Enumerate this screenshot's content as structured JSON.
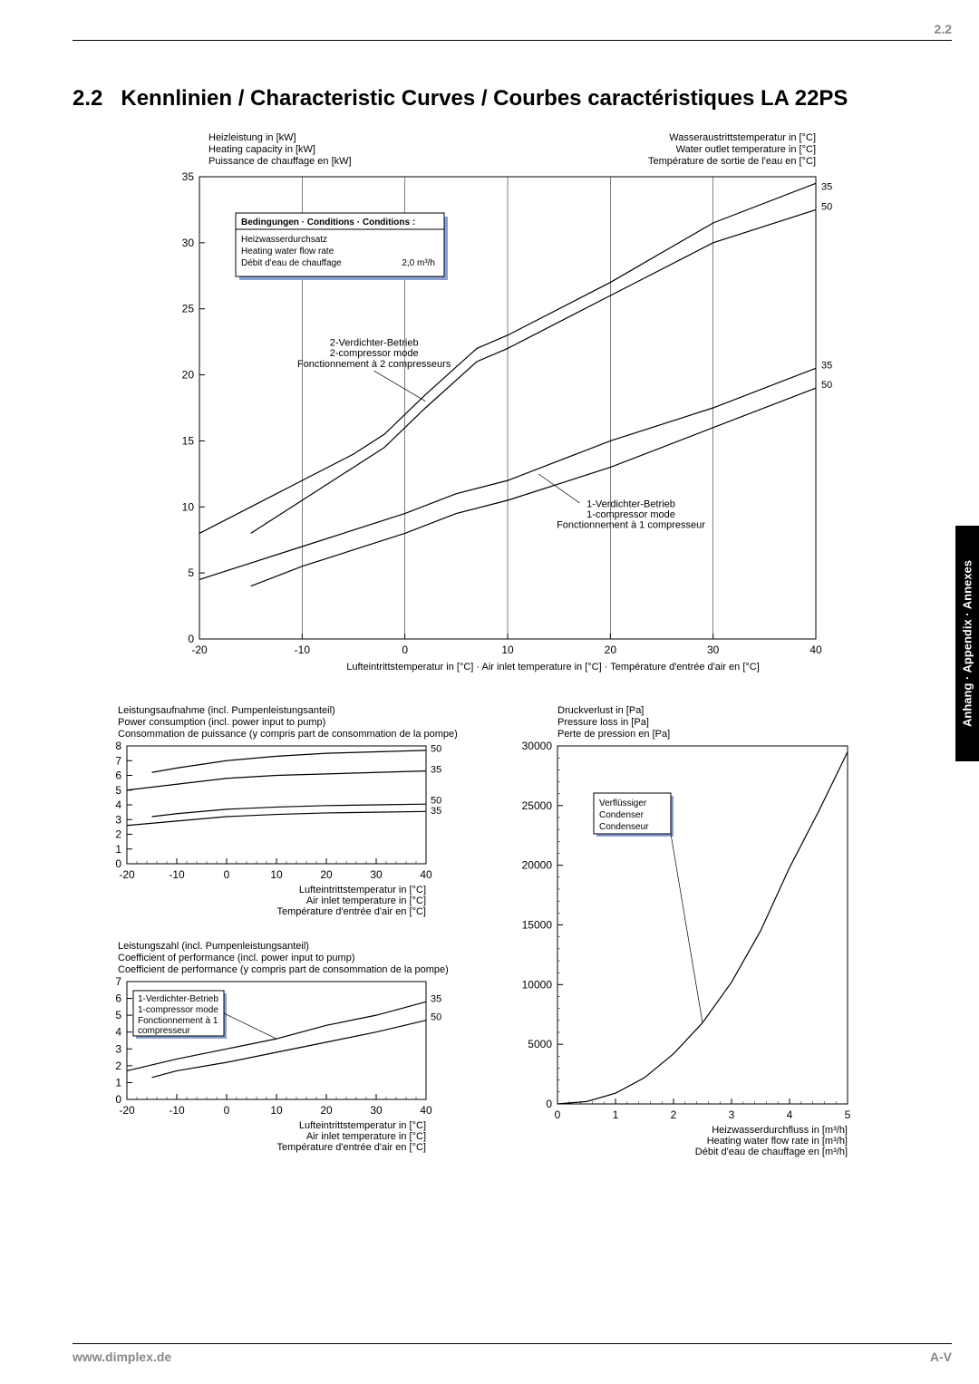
{
  "page": {
    "header_number": "2.2",
    "section_number": "2.2",
    "section_title": "Kennlinien / Characteristic Curves / Courbes caractéristiques LA 22PS",
    "footer_url": "www.dimplex.de",
    "footer_page": "A-V",
    "side_tab": "Anhang · Appendix · Annexes"
  },
  "main_chart": {
    "type": "line",
    "title_left_1": "Heizleistung in [kW]",
    "title_left_2": "Heating capacity in [kW]",
    "title_left_3": "Puissance de chauffage en [kW]",
    "title_right_1": "Wasseraustrittstemperatur in [°C]",
    "title_right_2": "Water outlet temperature in [°C]",
    "title_right_3": "Température de sortie de l'eau en [°C]",
    "xlabel": "Lufteintrittstemperatur in [°C] · Air inlet temperature in [°C] · Température d'entrée d'air en [°C]",
    "xlim": [
      -20,
      40
    ],
    "xtick_step": 10,
    "ylim": [
      0,
      35
    ],
    "ytick_step": 5,
    "conditions_box": {
      "title": "Bedingungen · Conditions · Conditions :",
      "l1": "Heizwasserdurchsatz",
      "l2": "Heating water flow rate",
      "l3": "Débit d'eau de chauffage",
      "value": "2,0 m³/h"
    },
    "annot_2comp_1": "2-Verdichter-Betrieb",
    "annot_2comp_2": "2-compressor mode",
    "annot_2comp_3": "Fonctionnement à 2 compresseurs",
    "annot_1comp_1": "1-Verdichter-Betrieb",
    "annot_1comp_2": "1-compressor mode",
    "annot_1comp_3": "Fonctionnement à 1 compresseur",
    "top_pair_labels": [
      "35",
      "50"
    ],
    "bot_pair_labels": [
      "35",
      "50"
    ],
    "series_2c_35": [
      [
        -20,
        8
      ],
      [
        -15,
        10
      ],
      [
        -10,
        12
      ],
      [
        -5,
        14
      ],
      [
        -2,
        15.5
      ],
      [
        2,
        18.5
      ],
      [
        7,
        22
      ],
      [
        10,
        23
      ],
      [
        20,
        27
      ],
      [
        30,
        31.5
      ],
      [
        40,
        34.5
      ]
    ],
    "series_2c_50": [
      [
        -15,
        8
      ],
      [
        -10,
        10.5
      ],
      [
        -5,
        13
      ],
      [
        -2,
        14.5
      ],
      [
        2,
        17.5
      ],
      [
        7,
        21
      ],
      [
        10,
        22
      ],
      [
        20,
        26
      ],
      [
        30,
        30
      ],
      [
        40,
        32.5
      ]
    ],
    "series_1c_35": [
      [
        -20,
        4.5
      ],
      [
        -10,
        7
      ],
      [
        0,
        9.5
      ],
      [
        5,
        11
      ],
      [
        10,
        12
      ],
      [
        20,
        15
      ],
      [
        30,
        17.5
      ],
      [
        40,
        20.5
      ]
    ],
    "series_1c_50": [
      [
        -15,
        4
      ],
      [
        -10,
        5.5
      ],
      [
        0,
        8
      ],
      [
        5,
        9.5
      ],
      [
        10,
        10.5
      ],
      [
        20,
        13
      ],
      [
        30,
        16
      ],
      [
        40,
        19
      ]
    ]
  },
  "power_chart": {
    "type": "line",
    "title_1": "Leistungsaufnahme (incl. Pumpenleistungsanteil)",
    "title_2": "Power consumption (incl. power input to pump)",
    "title_3": "Consommation de puissance (y compris part de consommation de la pompe)",
    "xlabel_1": "Lufteintrittstemperatur in [°C]",
    "xlabel_2": "Air inlet temperature in [°C]",
    "xlabel_3": "Température d'entrée d'air en [°C]",
    "xlim": [
      -20,
      40
    ],
    "xtick_step": 10,
    "ylim": [
      0,
      8
    ],
    "ytick_step": 1,
    "labels_upper": [
      "50",
      "35"
    ],
    "labels_lower": [
      "50",
      "35"
    ],
    "series_2c_50": [
      [
        -15,
        6.2
      ],
      [
        -10,
        6.5
      ],
      [
        0,
        7
      ],
      [
        10,
        7.3
      ],
      [
        20,
        7.5
      ],
      [
        30,
        7.6
      ],
      [
        40,
        7.7
      ]
    ],
    "series_2c_35": [
      [
        -20,
        5
      ],
      [
        -10,
        5.4
      ],
      [
        0,
        5.8
      ],
      [
        10,
        6
      ],
      [
        20,
        6.1
      ],
      [
        30,
        6.2
      ],
      [
        40,
        6.3
      ]
    ],
    "series_1c_50": [
      [
        -15,
        3.2
      ],
      [
        -10,
        3.4
      ],
      [
        0,
        3.7
      ],
      [
        10,
        3.85
      ],
      [
        20,
        3.95
      ],
      [
        30,
        4
      ],
      [
        40,
        4.05
      ]
    ],
    "series_1c_35": [
      [
        -20,
        2.6
      ],
      [
        -10,
        2.9
      ],
      [
        0,
        3.2
      ],
      [
        10,
        3.35
      ],
      [
        20,
        3.45
      ],
      [
        30,
        3.5
      ],
      [
        40,
        3.55
      ]
    ]
  },
  "cop_chart": {
    "type": "line",
    "title_1": "Leistungszahl (incl. Pumpenleistungsanteil)",
    "title_2": "Coefficient of performance (incl. power input to pump)",
    "title_3": "Coefficient de performance (y compris part de consommation de la pompe)",
    "xlabel_1": "Lufteintrittstemperatur in [°C]",
    "xlabel_2": "Air inlet temperature in [°C]",
    "xlabel_3": "Température d'entrée d'air en [°C]",
    "xlim": [
      -20,
      40
    ],
    "xtick_step": 10,
    "ylim": [
      0,
      7
    ],
    "ytick_step": 1,
    "labels": [
      "35",
      "50"
    ],
    "box_l1": "1-Verdichter-Betrieb",
    "box_l2": "1-compressor mode",
    "box_l3": "Fonctionnement à 1",
    "box_l4": "compresseur",
    "series_35": [
      [
        -20,
        1.7
      ],
      [
        -10,
        2.4
      ],
      [
        0,
        3
      ],
      [
        10,
        3.6
      ],
      [
        20,
        4.4
      ],
      [
        30,
        5
      ],
      [
        40,
        5.8
      ]
    ],
    "series_50": [
      [
        -15,
        1.3
      ],
      [
        -10,
        1.7
      ],
      [
        0,
        2.2
      ],
      [
        10,
        2.8
      ],
      [
        20,
        3.4
      ],
      [
        30,
        4
      ],
      [
        40,
        4.7
      ]
    ]
  },
  "pressure_chart": {
    "type": "line",
    "title_1": "Druckverlust in [Pa]",
    "title_2": "Pressure loss in [Pa]",
    "title_3": "Perte de pression en [Pa]",
    "xlabel_1": "Heizwasserdurchfluss in [m³/h]",
    "xlabel_2": "Heating water flow rate in [m³/h]",
    "xlabel_3": "Débit d'eau de chauffage en [m³/h]",
    "xlim": [
      0,
      5
    ],
    "xtick_step": 1,
    "ylim": [
      0,
      30000
    ],
    "ytick_step": 5000,
    "box_l1": "Verflüssiger",
    "box_l2": "Condenser",
    "box_l3": "Condenseur",
    "series": [
      [
        0,
        0
      ],
      [
        0.5,
        200
      ],
      [
        1,
        900
      ],
      [
        1.5,
        2200
      ],
      [
        2,
        4200
      ],
      [
        2.5,
        6800
      ],
      [
        3,
        10200
      ],
      [
        3.5,
        14500
      ],
      [
        4,
        19800
      ],
      [
        4.5,
        24500
      ],
      [
        5,
        29500
      ]
    ]
  }
}
